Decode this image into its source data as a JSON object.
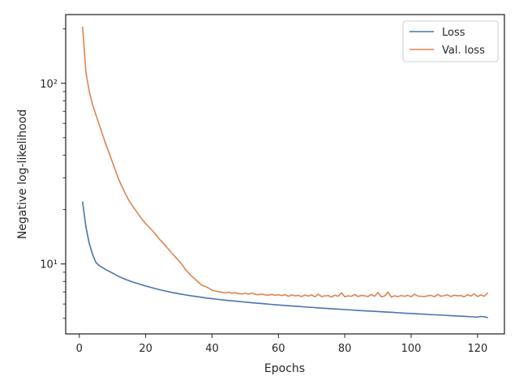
{
  "chart_data": {
    "type": "line",
    "title": "",
    "xlabel": "Epochs",
    "ylabel": "Negative log-likelihood",
    "xlim": [
      -4.1,
      128.1
    ],
    "ylim": [
      4.1,
      240
    ],
    "yscale": "log",
    "grid": false,
    "legend_position": "top-right",
    "x_ticks": [
      0,
      20,
      40,
      60,
      80,
      100,
      120
    ],
    "y_major_ticks": [
      10,
      100
    ],
    "y_major_tick_labels": [
      "10¹",
      "10²"
    ],
    "y_minor_ticks": [
      5,
      6,
      7,
      8,
      9,
      20,
      30,
      40,
      50,
      60,
      70,
      80,
      90,
      200
    ],
    "series": [
      {
        "name": "Loss",
        "color": "#4c72b0",
        "x": [
          1,
          2,
          3,
          4,
          5,
          6,
          8,
          10,
          12,
          14,
          16,
          18,
          20,
          22,
          24,
          26,
          28,
          30,
          32,
          34,
          36,
          38,
          40,
          42,
          44,
          46,
          48,
          50,
          52,
          54,
          56,
          58,
          60,
          62,
          64,
          66,
          68,
          70,
          72,
          74,
          76,
          78,
          80,
          82,
          84,
          86,
          88,
          90,
          92,
          94,
          96,
          98,
          100,
          102,
          104,
          106,
          108,
          110,
          112,
          114,
          116,
          118,
          120,
          121,
          122,
          123
        ],
        "y": [
          22,
          16,
          13,
          11.3,
          10.2,
          9.8,
          9.3,
          8.9,
          8.5,
          8.2,
          7.95,
          7.75,
          7.55,
          7.38,
          7.22,
          7.08,
          6.95,
          6.84,
          6.74,
          6.65,
          6.57,
          6.49,
          6.42,
          6.36,
          6.3,
          6.25,
          6.2,
          6.15,
          6.1,
          6.06,
          6.01,
          5.97,
          5.93,
          5.89,
          5.85,
          5.82,
          5.78,
          5.75,
          5.71,
          5.68,
          5.65,
          5.62,
          5.59,
          5.56,
          5.53,
          5.5,
          5.48,
          5.45,
          5.42,
          5.4,
          5.37,
          5.34,
          5.32,
          5.29,
          5.27,
          5.24,
          5.22,
          5.2,
          5.17,
          5.15,
          5.13,
          5.1,
          5.08,
          5.12,
          5.1,
          5.05
        ]
      },
      {
        "name": "Val. loss",
        "color": "#dd8452",
        "x": [
          1,
          2,
          3,
          4,
          5,
          6,
          7,
          8,
          9,
          10,
          11,
          12,
          13,
          14,
          15,
          16,
          17,
          18,
          19,
          20,
          21,
          22,
          23,
          24,
          25,
          26,
          27,
          28,
          29,
          30,
          31,
          32,
          33,
          34,
          35,
          36,
          37,
          38,
          39,
          40,
          41,
          42,
          43,
          44,
          45,
          46,
          47,
          48,
          49,
          50,
          51,
          52,
          53,
          54,
          55,
          56,
          57,
          58,
          59,
          60,
          61,
          62,
          63,
          64,
          65,
          66,
          67,
          68,
          69,
          70,
          71,
          72,
          73,
          74,
          75,
          76,
          77,
          78,
          79,
          80,
          81,
          82,
          83,
          84,
          85,
          86,
          87,
          88,
          89,
          90,
          91,
          92,
          93,
          94,
          95,
          96,
          97,
          98,
          99,
          100,
          101,
          102,
          103,
          104,
          105,
          106,
          107,
          108,
          109,
          110,
          111,
          112,
          113,
          114,
          115,
          116,
          117,
          118,
          119,
          120,
          121,
          122,
          123
        ],
        "y": [
          205,
          115,
          90,
          76,
          67,
          59,
          52,
          46,
          41,
          36.5,
          32.5,
          29,
          26.5,
          24.2,
          22.4,
          21,
          19.8,
          18.6,
          17.6,
          16.7,
          16,
          15.3,
          14.6,
          13.8,
          13.2,
          12.6,
          12,
          11.4,
          10.9,
          10.4,
          9.9,
          9.3,
          8.9,
          8.5,
          8.2,
          7.9,
          7.6,
          7.5,
          7.35,
          7.15,
          7.08,
          7.02,
          6.97,
          6.92,
          6.98,
          6.88,
          6.93,
          6.85,
          6.82,
          6.88,
          6.8,
          6.9,
          6.78,
          6.76,
          6.82,
          6.74,
          6.72,
          6.78,
          6.7,
          6.75,
          6.68,
          6.76,
          6.62,
          6.74,
          6.66,
          6.7,
          6.6,
          6.72,
          6.64,
          6.74,
          6.58,
          6.8,
          6.6,
          6.66,
          6.68,
          6.56,
          6.72,
          6.62,
          6.92,
          6.58,
          6.66,
          6.62,
          6.78,
          6.6,
          6.7,
          6.66,
          6.6,
          6.78,
          6.62,
          6.95,
          6.58,
          6.64,
          6.98,
          6.56,
          6.66,
          6.6,
          6.68,
          6.62,
          6.7,
          6.58,
          6.8,
          6.64,
          6.62,
          6.6,
          6.66,
          6.7,
          6.58,
          6.78,
          6.62,
          6.68,
          6.74,
          6.6,
          6.72,
          6.66,
          6.68,
          6.58,
          6.76,
          6.64,
          6.82,
          6.6,
          6.74,
          6.62,
          6.9
        ]
      }
    ]
  }
}
